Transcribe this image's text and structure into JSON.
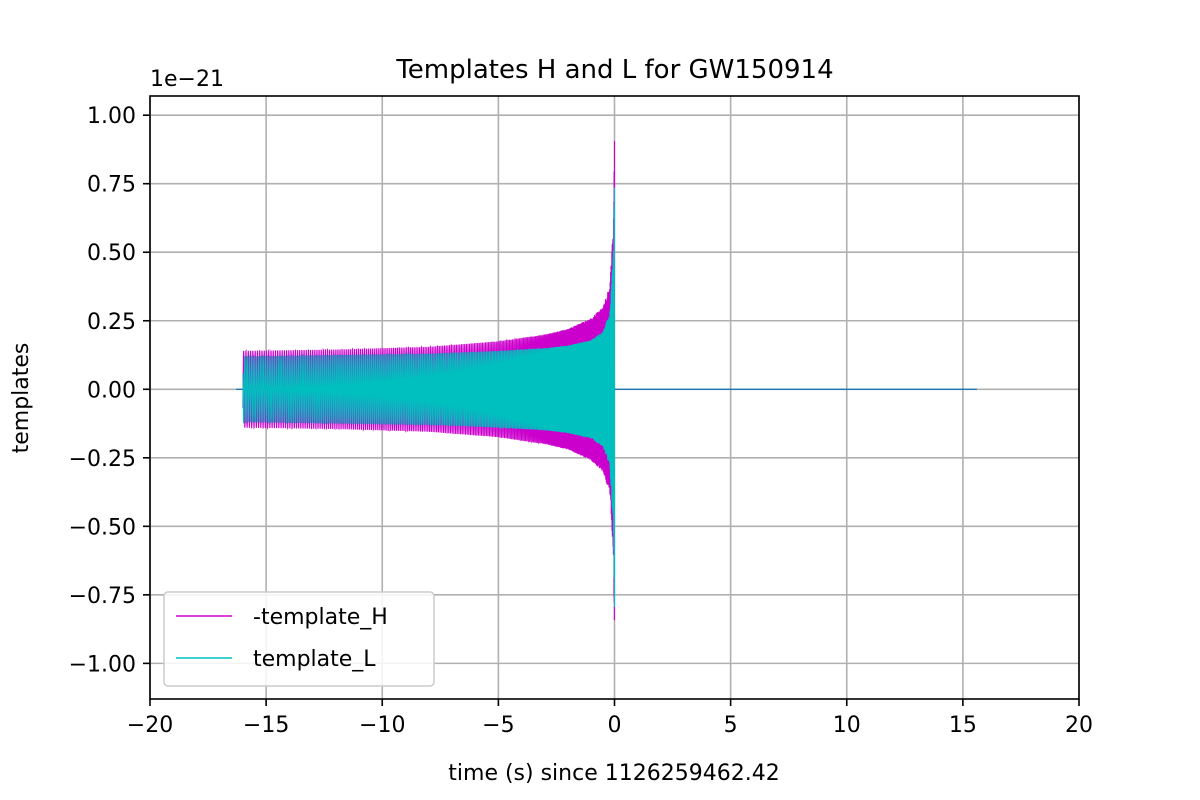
{
  "chart_data": {
    "type": "line",
    "title": "Templates H and L for GW150914",
    "xlabel": "time (s) since 1126259462.42",
    "ylabel": "templates",
    "y_offset_label": "1e−21",
    "xlim": [
      -20,
      20
    ],
    "ylim": [
      -1.13,
      1.07
    ],
    "xticks": [
      -20,
      -15,
      -10,
      -5,
      0,
      5,
      10,
      15,
      20
    ],
    "xtick_labels": [
      "−20",
      "−15",
      "−10",
      "−5",
      "0",
      "5",
      "10",
      "15",
      "20"
    ],
    "yticks": [
      1.0,
      0.75,
      0.5,
      0.25,
      0.0,
      -0.25,
      -0.5,
      -0.75,
      -1.0
    ],
    "ytick_labels": [
      "1.00",
      "0.75",
      "0.50",
      "0.25",
      "0.00",
      "−0.25",
      "−0.50",
      "−0.75",
      "−1.00"
    ],
    "grid": true,
    "legend_position": "lower-left",
    "series": [
      {
        "name": "-template_H",
        "color": "#cc00cc",
        "envelope_t": [
          -16.0,
          -12.0,
          -8.0,
          -5.0,
          -3.0,
          -2.0,
          -1.0,
          -0.5,
          -0.2,
          -0.05,
          0.0
        ],
        "envelope_a": [
          0.14,
          0.145,
          0.155,
          0.175,
          0.2,
          0.22,
          0.26,
          0.3,
          0.38,
          0.6,
          0.97
        ]
      },
      {
        "name": "template_L",
        "color": "#00bfbf",
        "envelope_t": [
          -16.0,
          -12.0,
          -8.0,
          -5.0,
          -3.0,
          -2.0,
          -1.0,
          -0.5,
          -0.2,
          -0.05,
          0.0
        ],
        "envelope_a": [
          0.12,
          0.125,
          0.13,
          0.14,
          0.15,
          0.16,
          0.18,
          0.21,
          0.28,
          0.5,
          0.85
        ]
      }
    ],
    "baseline": {
      "color": "#1f77b4",
      "t_start": -16.3,
      "t_end": 15.6,
      "value": 0.0
    }
  }
}
